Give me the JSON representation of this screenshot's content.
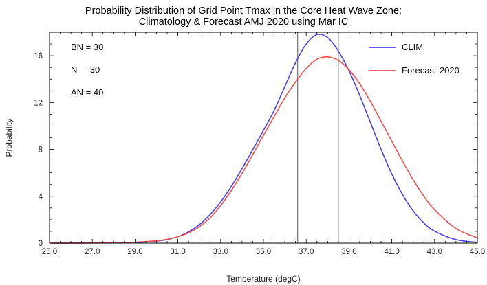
{
  "chart_data": {
    "type": "line",
    "title_lines": [
      "Probability Distribution of Grid Point Tmax in the Core Heat Wave Zone:",
      "Climatology & Forecast AMJ 2020 using Mar IC"
    ],
    "xlabel": "Temperature (degC)",
    "ylabel": "Probability",
    "xlim": [
      25,
      45
    ],
    "ylim": [
      0,
      18
    ],
    "x_ticks": [
      "25.0",
      "27.0",
      "29.0",
      "31.0",
      "33.0",
      "35.0",
      "37.0",
      "39.0",
      "41.0",
      "43.0",
      "45.0"
    ],
    "y_ticks": [
      "0",
      "4",
      "8",
      "12",
      "16"
    ],
    "grid": false,
    "legend_position": "top-right",
    "annotations": [
      "BN = 30",
      "N  = 30",
      "AN = 40"
    ],
    "vertical_lines": [
      36.6,
      38.5
    ],
    "series": [
      {
        "name": "CLIM",
        "color": "#4a3fe8",
        "x": [
          25,
          26,
          27,
          28,
          29,
          30,
          30.5,
          31,
          31.5,
          32,
          32.5,
          33,
          33.5,
          34,
          34.5,
          35,
          35.5,
          36,
          36.5,
          37,
          37.5,
          38,
          38.5,
          39,
          39.5,
          40,
          40.5,
          41,
          41.5,
          42,
          42.5,
          43,
          44,
          45
        ],
        "values": [
          0.0,
          0.0,
          0.01,
          0.02,
          0.05,
          0.18,
          0.3,
          0.55,
          0.96,
          1.57,
          2.42,
          3.52,
          4.85,
          6.36,
          7.98,
          9.62,
          11.32,
          13.37,
          15.4,
          17.0,
          17.8,
          17.55,
          16.4,
          14.71,
          12.61,
          10.3,
          8.0,
          5.9,
          4.15,
          2.75,
          1.72,
          1.02,
          0.3,
          0.07
        ]
      },
      {
        "name": "Forecast-2020",
        "color": "#ef4f4f",
        "x": [
          25,
          26,
          27,
          28,
          29,
          30,
          30.5,
          31,
          31.5,
          32,
          32.5,
          33,
          33.5,
          34,
          34.5,
          35,
          35.5,
          36,
          36.5,
          37,
          37.5,
          38,
          38.5,
          39,
          39.5,
          40,
          40.5,
          41,
          41.5,
          42,
          42.5,
          43,
          44,
          45
        ],
        "values": [
          0.0,
          0.0,
          0.01,
          0.03,
          0.08,
          0.2,
          0.33,
          0.55,
          0.88,
          1.4,
          2.15,
          3.2,
          4.5,
          5.95,
          7.55,
          9.2,
          10.8,
          12.4,
          13.75,
          14.9,
          15.7,
          15.9,
          15.6,
          14.8,
          13.6,
          12.1,
          10.4,
          8.7,
          7.0,
          5.4,
          4.0,
          2.85,
          1.25,
          0.45
        ]
      }
    ]
  }
}
